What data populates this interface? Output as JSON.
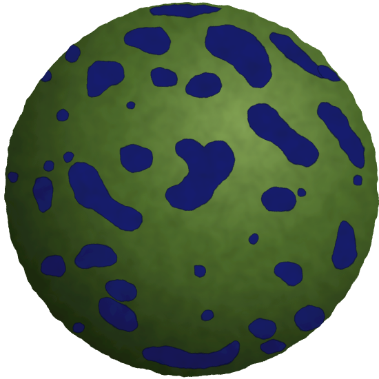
{
  "scene": {
    "subject": "sphere",
    "colors": {
      "background": "#ffffff",
      "surface_light": "#84a455",
      "surface_mid": "#4f6e2c",
      "surface_dark": "#1f3010",
      "spot": "#191f6e",
      "spot_dark": "#0c0f3e"
    }
  }
}
